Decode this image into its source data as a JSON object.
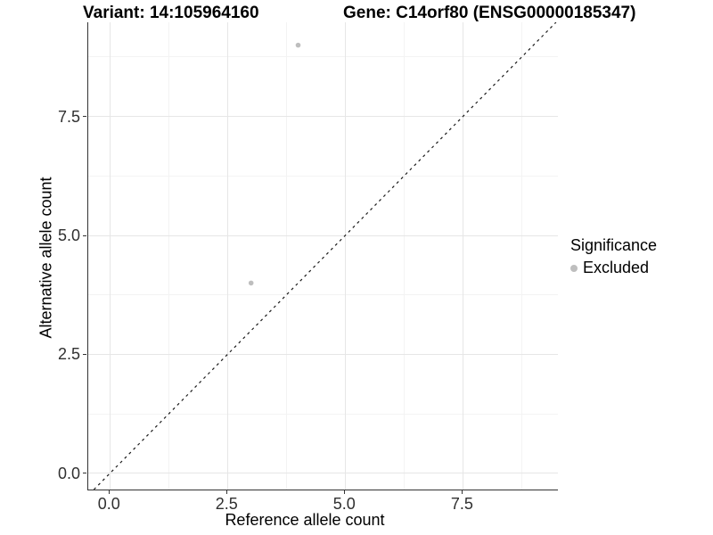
{
  "chart_data": {
    "type": "scatter",
    "title_left": "Variant: 14:105964160",
    "title_right": "Gene: C14orf80 (ENSG00000185347)",
    "xlabel": "Reference allele count",
    "ylabel": "Alternative allele count",
    "xlim": [
      -0.46,
      9.52
    ],
    "ylim": [
      -0.34,
      9.48
    ],
    "x_ticks": [
      {
        "value": 0,
        "label": "0.0"
      },
      {
        "value": 2.5,
        "label": "2.5"
      },
      {
        "value": 5,
        "label": "5.0"
      },
      {
        "value": 7.5,
        "label": "7.5"
      }
    ],
    "y_ticks": [
      {
        "value": 0,
        "label": "0.0"
      },
      {
        "value": 2.5,
        "label": "2.5"
      },
      {
        "value": 5,
        "label": "5.0"
      },
      {
        "value": 7.5,
        "label": "7.5"
      }
    ],
    "x_minor": [
      1.25,
      3.75,
      6.25,
      8.75
    ],
    "y_minor": [
      1.25,
      3.75,
      6.25,
      8.75
    ],
    "grid": true,
    "series": [
      {
        "name": "Excluded",
        "color": "#bebebe",
        "point_radius": 2.8,
        "points": [
          {
            "x": 4,
            "y": 9
          },
          {
            "x": 3,
            "y": 4
          }
        ]
      }
    ],
    "reference_line": {
      "type": "identity",
      "slope": 1,
      "intercept": 0,
      "style": "dashed",
      "color": "#1a1a1a"
    },
    "legend": {
      "title": "Significance",
      "position": "right",
      "items": [
        {
          "label": "Excluded",
          "color": "#bebebe"
        }
      ]
    }
  },
  "colors": {
    "axis_line": "#333333",
    "grid_major": "#e6e6e6",
    "grid_minor": "#f3f3f3",
    "tick_text": "#303030",
    "point": "#bebebe"
  }
}
